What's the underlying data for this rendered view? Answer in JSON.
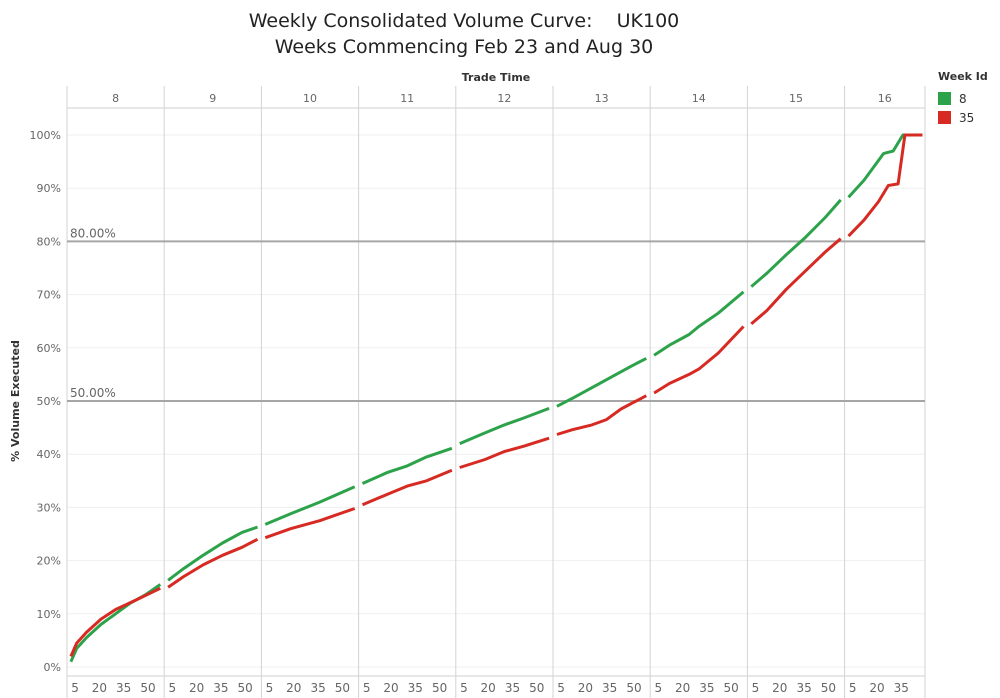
{
  "title": {
    "line1": "Weekly Consolidated Volume Curve:    UK100",
    "line2": "Weeks Commencing Feb 23 and Aug 30"
  },
  "legend": {
    "title": "Week Id",
    "items": [
      {
        "label": "8",
        "color": "#2ca24a"
      },
      {
        "label": "35",
        "color": "#d62a22"
      }
    ]
  },
  "chart_data": {
    "type": "line",
    "title": "Weekly Consolidated Volume Curve:    UK100",
    "subtitle": "Weeks Commencing Feb 23 and Aug 30",
    "xlabel": "Trade Time",
    "ylabel": "% Volume Executed",
    "hours": [
      "8",
      "9",
      "10",
      "11",
      "12",
      "13",
      "14",
      "15",
      "16"
    ],
    "minute_ticks": [
      "5",
      "20",
      "35",
      "50"
    ],
    "last_hour_minute_ticks": [
      "5",
      "20",
      "35"
    ],
    "xlim": [
      8.0,
      16.83
    ],
    "yticks": [
      "0%",
      "10%",
      "20%",
      "30%",
      "40%",
      "50%",
      "60%",
      "70%",
      "80%",
      "90%",
      "100%"
    ],
    "ylim": [
      0,
      100
    ],
    "reference_lines": [
      {
        "value": 80,
        "label": "80.00%"
      },
      {
        "value": 50,
        "label": "50.00%"
      }
    ],
    "legend_title": "Week Id",
    "legend_position": "top-right",
    "series": [
      {
        "name": "8",
        "color": "#2ca24a",
        "points": [
          [
            8.04,
            1
          ],
          [
            8.1,
            3.5
          ],
          [
            8.2,
            5.5
          ],
          [
            8.35,
            8
          ],
          [
            8.5,
            10
          ],
          [
            8.65,
            12
          ],
          [
            8.8,
            13.5
          ],
          [
            8.96,
            15.5
          ],
          [
            9.04,
            16.3
          ],
          [
            9.2,
            18.5
          ],
          [
            9.4,
            21
          ],
          [
            9.6,
            23.3
          ],
          [
            9.8,
            25.3
          ],
          [
            9.96,
            26.3
          ],
          [
            10.04,
            26.8
          ],
          [
            10.3,
            28.8
          ],
          [
            10.6,
            31
          ],
          [
            10.96,
            33.9
          ],
          [
            11.04,
            34.5
          ],
          [
            11.3,
            36.6
          ],
          [
            11.5,
            37.8
          ],
          [
            11.7,
            39.5
          ],
          [
            11.96,
            41.1
          ],
          [
            12.04,
            42
          ],
          [
            12.3,
            44
          ],
          [
            12.5,
            45.5
          ],
          [
            12.7,
            46.8
          ],
          [
            12.96,
            48.6
          ],
          [
            13.04,
            49
          ],
          [
            13.2,
            50.5
          ],
          [
            13.4,
            52.5
          ],
          [
            13.6,
            54.5
          ],
          [
            13.8,
            56.5
          ],
          [
            13.96,
            58
          ],
          [
            14.04,
            58.6
          ],
          [
            14.2,
            60.5
          ],
          [
            14.4,
            62.5
          ],
          [
            14.5,
            64
          ],
          [
            14.7,
            66.5
          ],
          [
            14.96,
            70.5
          ],
          [
            15.04,
            71.5
          ],
          [
            15.2,
            74
          ],
          [
            15.4,
            77.5
          ],
          [
            15.6,
            80.8
          ],
          [
            15.8,
            84.5
          ],
          [
            15.96,
            87.8
          ],
          [
            16.04,
            88.3
          ],
          [
            16.2,
            91.5
          ],
          [
            16.4,
            96.5
          ],
          [
            16.5,
            97
          ],
          [
            16.6,
            100
          ],
          [
            16.8,
            100
          ]
        ]
      },
      {
        "name": "35",
        "color": "#d62a22",
        "points": [
          [
            8.04,
            2
          ],
          [
            8.1,
            4.5
          ],
          [
            8.2,
            6.5
          ],
          [
            8.35,
            9
          ],
          [
            8.5,
            10.8
          ],
          [
            8.7,
            12.5
          ],
          [
            8.96,
            14.8
          ],
          [
            9.04,
            15
          ],
          [
            9.2,
            17
          ],
          [
            9.4,
            19.2
          ],
          [
            9.6,
            21
          ],
          [
            9.8,
            22.5
          ],
          [
            9.96,
            24
          ],
          [
            10.04,
            24.3
          ],
          [
            10.3,
            26
          ],
          [
            10.6,
            27.5
          ],
          [
            10.96,
            29.8
          ],
          [
            11.04,
            30.5
          ],
          [
            11.3,
            32.5
          ],
          [
            11.5,
            34
          ],
          [
            11.7,
            35
          ],
          [
            11.96,
            37
          ],
          [
            12.04,
            37.5
          ],
          [
            12.3,
            39
          ],
          [
            12.5,
            40.5
          ],
          [
            12.7,
            41.5
          ],
          [
            12.96,
            43
          ],
          [
            13.04,
            43.7
          ],
          [
            13.2,
            44.6
          ],
          [
            13.4,
            45.5
          ],
          [
            13.55,
            46.5
          ],
          [
            13.7,
            48.5
          ],
          [
            13.96,
            51
          ],
          [
            14.04,
            51.5
          ],
          [
            14.2,
            53.3
          ],
          [
            14.4,
            55
          ],
          [
            14.5,
            56
          ],
          [
            14.7,
            59
          ],
          [
            14.96,
            64
          ],
          [
            15.04,
            64.5
          ],
          [
            15.2,
            67
          ],
          [
            15.4,
            71
          ],
          [
            15.6,
            74.5
          ],
          [
            15.8,
            78
          ],
          [
            15.96,
            80.5
          ],
          [
            16.04,
            81
          ],
          [
            16.2,
            84
          ],
          [
            16.35,
            87.5
          ],
          [
            16.45,
            90.5
          ],
          [
            16.55,
            90.8
          ],
          [
            16.62,
            100
          ],
          [
            16.8,
            100
          ]
        ]
      }
    ]
  }
}
